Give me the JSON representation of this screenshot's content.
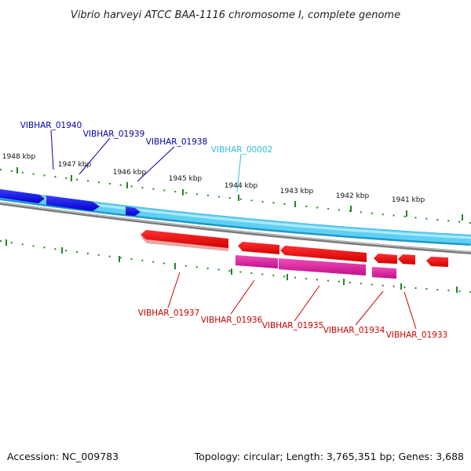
{
  "title": "Vibrio harveyi ATCC BAA-1116 chromosome I, complete genome",
  "footer": {
    "accession": "Accession: NC_009783",
    "summary": "Topology: circular; Length: 3,765,351 bp; Genes: 3,688"
  },
  "kbp_labels": [
    "1948 kbp",
    "1947 kbp",
    "1946 kbp",
    "1945 kbp",
    "1944 kbp",
    "1943 kbp",
    "1942 kbp",
    "1941 kbp"
  ],
  "genes_forward": [
    {
      "name": "VIBHAR_01940",
      "color": "#0000aa"
    },
    {
      "name": "VIBHAR_01939",
      "color": "#0000aa"
    },
    {
      "name": "VIBHAR_01938",
      "color": "#0000aa"
    },
    {
      "name": "VIBHAR_00002",
      "color": "#33bbdd"
    }
  ],
  "genes_reverse": [
    {
      "name": "VIBHAR_01937",
      "color": "#cc0000"
    },
    {
      "name": "VIBHAR_01936",
      "color": "#cc0000"
    },
    {
      "name": "VIBHAR_01935",
      "color": "#cc0000"
    },
    {
      "name": "VIBHAR_01934",
      "color": "#cc0000"
    },
    {
      "name": "VIBHAR_01933",
      "color": "#cc0000"
    }
  ],
  "colors": {
    "forward_gene": "#1010ee",
    "forward_track": "#55ccf0",
    "backbone": "#888888",
    "reverse_gene": "#ee1111",
    "rrna_like": "#dd2299",
    "tick": "#228822"
  }
}
